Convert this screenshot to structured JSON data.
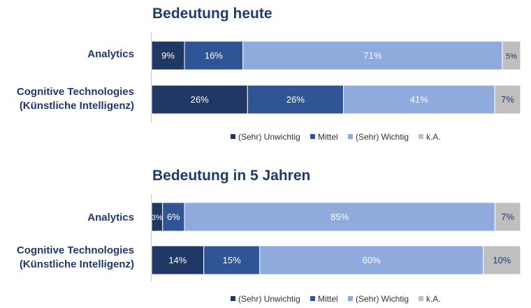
{
  "chart_data": [
    {
      "type": "bar",
      "orientation": "horizontal",
      "stacked": true,
      "title": "Bedeutung heute",
      "categories": [
        "Analytics",
        "Cognitive Technologies\n(Künstliche Intelligenz)"
      ],
      "series": [
        {
          "name": "(Sehr) Unwichtig",
          "color": "#1f3864",
          "values": [
            9,
            26
          ],
          "labels": [
            "9%",
            "26%"
          ]
        },
        {
          "name": "Mittel",
          "color": "#2f5597",
          "values": [
            16,
            26
          ],
          "labels": [
            "16%",
            "26%"
          ]
        },
        {
          "name": "(Sehr) Wichtig",
          "color": "#8faadc",
          "values": [
            71,
            41
          ],
          "labels": [
            "71%",
            "41%"
          ]
        },
        {
          "name": "k.A.",
          "color": "#bfbfbf",
          "values": [
            5,
            7
          ],
          "labels": [
            "5%",
            "7%"
          ]
        }
      ],
      "xlim": [
        0,
        100
      ],
      "legend_position": "bottom"
    },
    {
      "type": "bar",
      "orientation": "horizontal",
      "stacked": true,
      "title": "Bedeutung in 5 Jahren",
      "categories": [
        "Analytics",
        "Cognitive Technologies\n(Künstliche Intelligenz)"
      ],
      "series": [
        {
          "name": "(Sehr) Unwichtig",
          "color": "#1f3864",
          "values": [
            3,
            14
          ],
          "labels": [
            "3%",
            "14%"
          ]
        },
        {
          "name": "Mittel",
          "color": "#2f5597",
          "values": [
            6,
            15
          ],
          "labels": [
            "6%",
            "15%"
          ]
        },
        {
          "name": "(Sehr) Wichtig",
          "color": "#8faadc",
          "values": [
            85,
            60
          ],
          "labels": [
            "85%",
            "60%"
          ]
        },
        {
          "name": "k.A.",
          "color": "#bfbfbf",
          "values": [
            7,
            10
          ],
          "labels": [
            "7%",
            "10%"
          ]
        }
      ],
      "xlim": [
        0,
        100
      ],
      "legend_position": "bottom"
    }
  ]
}
